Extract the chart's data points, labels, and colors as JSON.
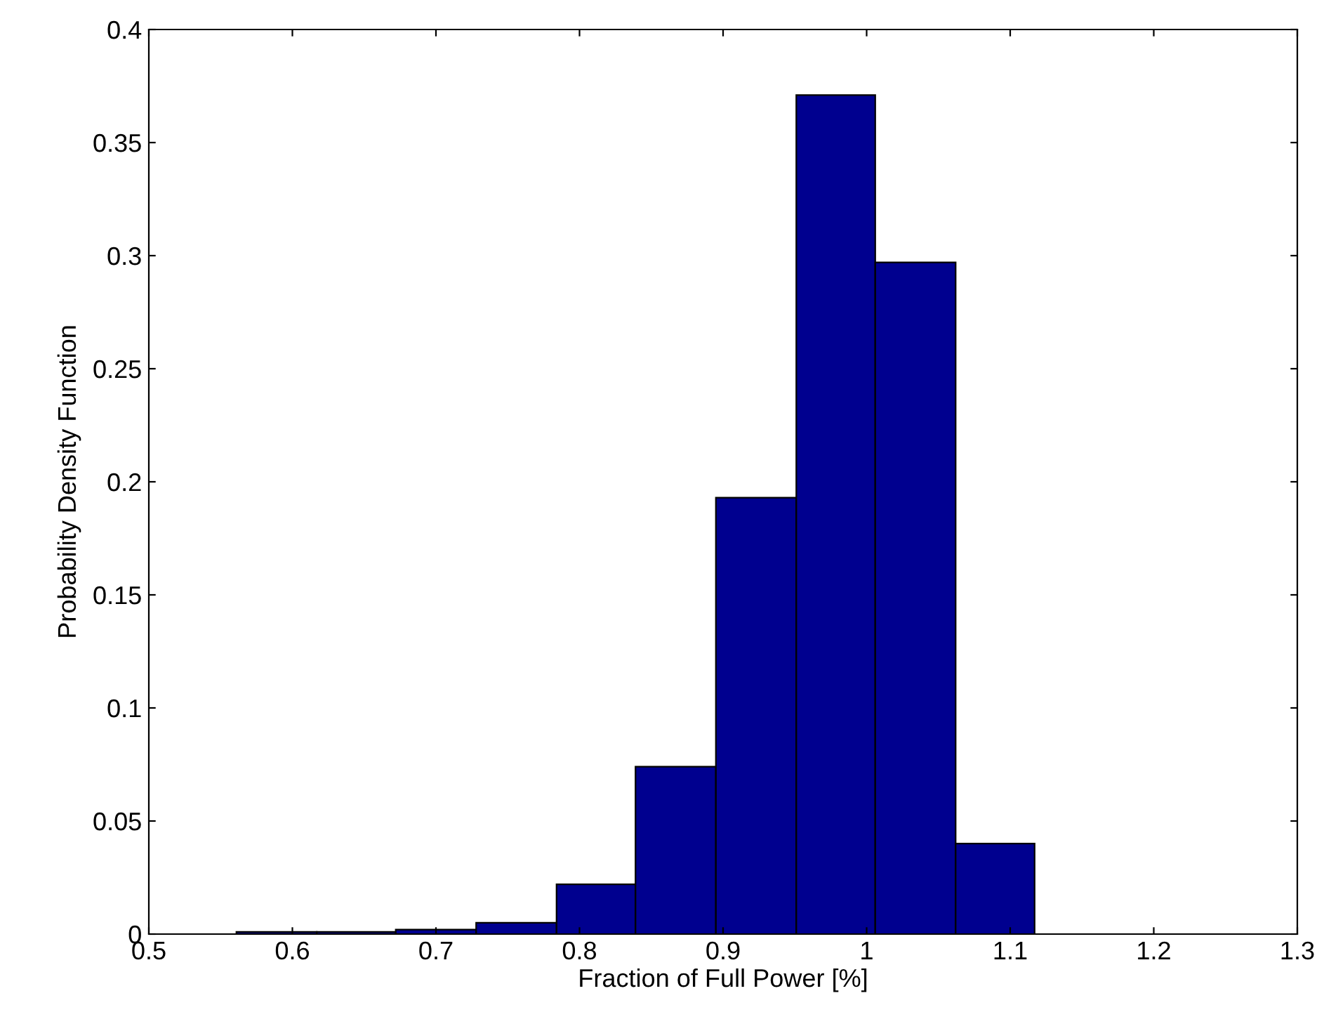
{
  "chart_data": {
    "type": "histogram",
    "xlabel": "Fraction of Full Power [%]",
    "ylabel": "Probability Density Function",
    "bins": [
      0.561,
      0.617,
      0.672,
      0.728,
      0.784,
      0.839,
      0.895,
      0.951,
      1.006,
      1.062,
      1.117
    ],
    "values": [
      0.001,
      0.001,
      0.002,
      0.005,
      0.022,
      0.074,
      0.193,
      0.371,
      0.297,
      0.04
    ],
    "color": "#00008f",
    "xlim": [
      0.5,
      1.3
    ],
    "xticks": [
      0.5,
      0.6,
      0.7,
      0.8,
      0.9,
      1,
      1.1,
      1.2,
      1.3
    ],
    "ylim": [
      0,
      0.4
    ],
    "yticks": [
      0,
      0.05,
      0.1,
      0.15,
      0.2,
      0.25,
      0.3,
      0.35,
      0.4
    ],
    "grid": false
  }
}
